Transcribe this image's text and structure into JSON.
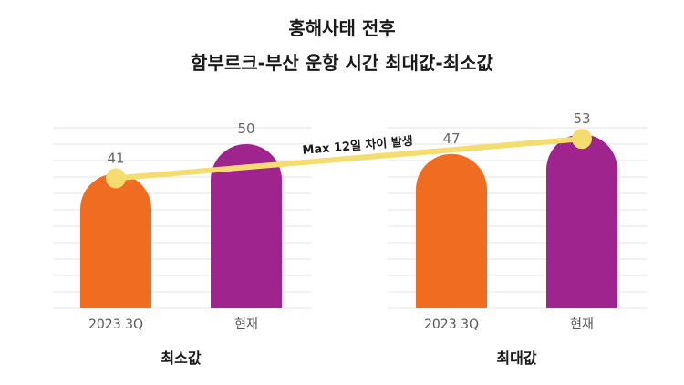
{
  "title": {
    "line1": "홍해사태 전후",
    "line2": "함부르크-부산 운항 시간 최대값-최소값"
  },
  "colors": {
    "bar_2023": "#EF6C20",
    "bar_now": "#A0248E",
    "connector": "#F5DC6E",
    "grid": "#e4e4e4"
  },
  "chart_data": [
    {
      "type": "bar",
      "group_label": "최소값",
      "categories": [
        "2023 3Q",
        "현재"
      ],
      "values": [
        41,
        50
      ],
      "ylim": [
        0,
        55
      ],
      "grid": true
    },
    {
      "type": "bar",
      "group_label": "최대값",
      "categories": [
        "2023 3Q",
        "현재"
      ],
      "values": [
        47,
        53
      ],
      "ylim": [
        0,
        55
      ],
      "grid": true
    }
  ],
  "annotation": {
    "text": "Max 12일 차이 발생",
    "from": {
      "panel": 0,
      "category": "2023 3Q",
      "value": 41
    },
    "to": {
      "panel": 1,
      "category": "현재",
      "value": 53
    }
  }
}
